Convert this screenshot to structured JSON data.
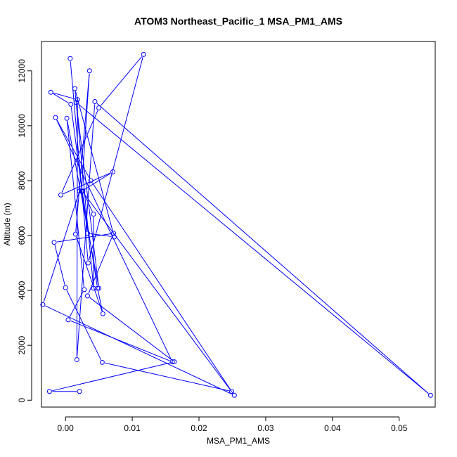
{
  "chart_data": {
    "type": "line",
    "title": "ATOM3 Northeast_Pacific_1 MSA_PM1_AMS",
    "xlabel": "MSA_PM1_AMS",
    "ylabel": "Altitude (m)",
    "xlim": [
      -0.0036,
      0.0554
    ],
    "ylim": [
      -250,
      13070
    ],
    "xticks": [
      0.0,
      0.01,
      0.02,
      0.03,
      0.04,
      0.05
    ],
    "xtick_labels": [
      "0.00",
      "0.01",
      "0.02",
      "0.03",
      "0.04",
      "0.05"
    ],
    "yticks": [
      0,
      2000,
      4000,
      6000,
      8000,
      10000,
      12000
    ],
    "ytick_labels": [
      "0",
      "2000",
      "4000",
      "6000",
      "8000",
      "10000",
      "12000"
    ],
    "grid": false,
    "marker": "open-circle",
    "line_color": "#0000ff",
    "series": [
      {
        "x": [
          0.0007,
          0.0034,
          0.0117,
          0.005,
          -0.0007,
          0.0071,
          0.0024,
          0.0036,
          0.0015,
          0.0056,
          0.0048,
          0.0025,
          0.0253,
          -0.0034,
          0.0021,
          0.0026,
          0.0042,
          0.0042,
          0.0014,
          0.0073,
          0.0033,
          0.0008,
          -0.0022,
          0.0018,
          0.0017,
          0.0044,
          0.0547,
          0.0016,
          0.005,
          0.0002,
          0.0028,
          0.0004,
          0.016,
          -0.0015,
          0.0038,
          0.0249,
          0.0055,
          0.0,
          -0.0017,
          0.0072,
          0.0033,
          0.0163,
          -0.0024,
          0.0021
        ],
        "y": [
          12450,
          5000,
          12600,
          10650,
          7480,
          8320,
          7610,
          12000,
          6050,
          3150,
          4080,
          7620,
          180,
          3480,
          7620,
          7620,
          6780,
          4080,
          11350,
          5950,
          6080,
          10780,
          11220,
          10950,
          1480,
          10880,
          180,
          10850,
          4080,
          10270,
          4030,
          2930,
          1400,
          10300,
          8000,
          320,
          1380,
          4100,
          5750,
          6080,
          3800,
          1400,
          320,
          320
        ]
      }
    ]
  }
}
